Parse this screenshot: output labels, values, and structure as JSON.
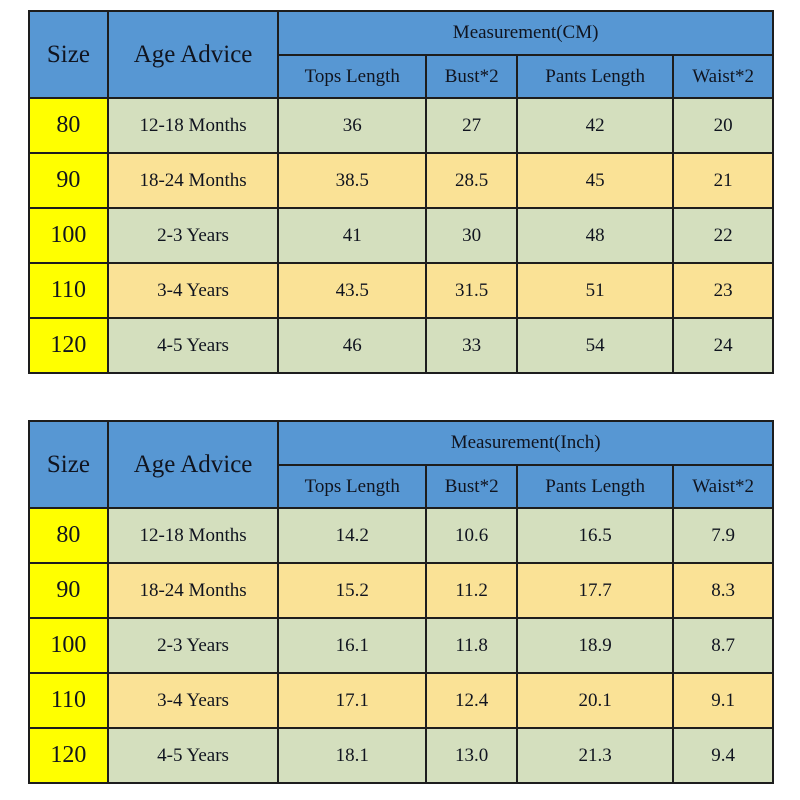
{
  "page": {
    "background": "#ffffff",
    "description_colors": {
      "header_blue": "#5797d3",
      "size_column_yellow": "#ffff00",
      "row_green": "#d4dfbe",
      "row_tan": "#fae296",
      "border": "#1d1d1d",
      "text": "#10141f"
    }
  },
  "chart_data": [
    {
      "type": "table",
      "title": "Measurement(CM)",
      "header": {
        "size_label": "Size",
        "age_label": "Age Advice",
        "group_label": "Measurement(CM)",
        "sub_columns": [
          "Tops Length",
          "Bust*2",
          "Pants Length",
          "Waist*2"
        ]
      },
      "rows": [
        {
          "size": "80",
          "age": "12-18 Months",
          "values": [
            "36",
            "27",
            "42",
            "20"
          ]
        },
        {
          "size": "90",
          "age": "18-24 Months",
          "values": [
            "38.5",
            "28.5",
            "45",
            "21"
          ]
        },
        {
          "size": "100",
          "age": "2-3 Years",
          "values": [
            "41",
            "30",
            "48",
            "22"
          ]
        },
        {
          "size": "110",
          "age": "3-4 Years",
          "values": [
            "43.5",
            "31.5",
            "51",
            "23"
          ]
        },
        {
          "size": "120",
          "age": "4-5 Years",
          "values": [
            "46",
            "33",
            "54",
            "24"
          ]
        }
      ]
    },
    {
      "type": "table",
      "title": "Measurement(Inch)",
      "header": {
        "size_label": "Size",
        "age_label": "Age Advice",
        "group_label": "Measurement(Inch)",
        "sub_columns": [
          "Tops Length",
          "Bust*2",
          "Pants Length",
          "Waist*2"
        ]
      },
      "rows": [
        {
          "size": "80",
          "age": "12-18 Months",
          "values": [
            "14.2",
            "10.6",
            "16.5",
            "7.9"
          ]
        },
        {
          "size": "90",
          "age": "18-24 Months",
          "values": [
            "15.2",
            "11.2",
            "17.7",
            "8.3"
          ]
        },
        {
          "size": "100",
          "age": "2-3 Years",
          "values": [
            "16.1",
            "11.8",
            "18.9",
            "8.7"
          ]
        },
        {
          "size": "110",
          "age": "3-4 Years",
          "values": [
            "17.1",
            "12.4",
            "20.1",
            "9.1"
          ]
        },
        {
          "size": "120",
          "age": "4-5 Years",
          "values": [
            "18.1",
            "13.0",
            "21.3",
            "9.4"
          ]
        }
      ]
    }
  ]
}
